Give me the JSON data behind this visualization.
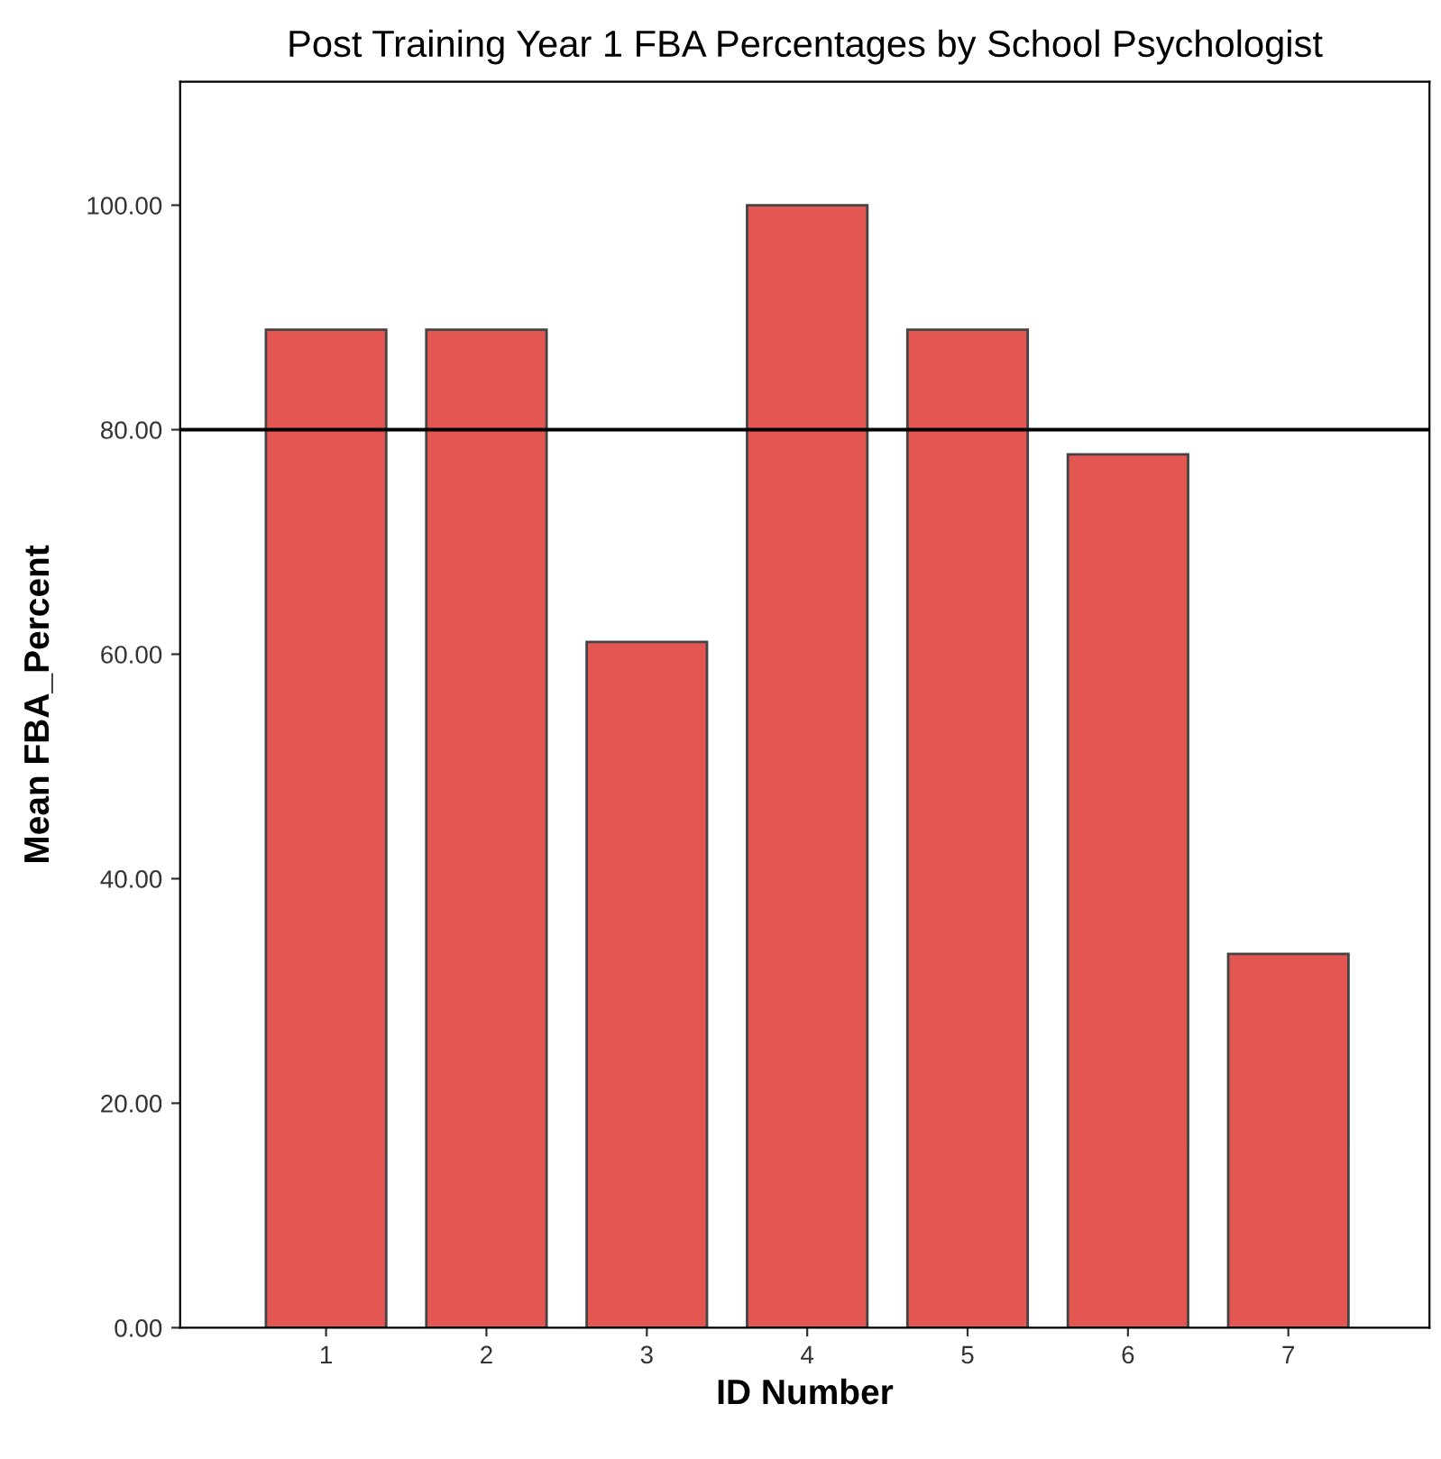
{
  "chart_data": {
    "type": "bar",
    "title": "Post Training Year 1 FBA Percentages by School Psychologist",
    "xlabel": "ID Number",
    "ylabel": "Mean FBA_Percent",
    "categories": [
      "1",
      "2",
      "3",
      "4",
      "5",
      "6",
      "7"
    ],
    "values": [
      88.9,
      88.9,
      61.1,
      100,
      88.9,
      77.8,
      33.3
    ],
    "color": "#e35651",
    "ylim": [
      0,
      111
    ],
    "yticks": [
      {
        "value": 0,
        "label": "0.00"
      },
      {
        "value": 20,
        "label": "20.00"
      },
      {
        "value": 40,
        "label": "40.00"
      },
      {
        "value": 60,
        "label": "60.00"
      },
      {
        "value": 80,
        "label": "80.00"
      },
      {
        "value": 100,
        "label": "100.00"
      }
    ],
    "ref_lines": [
      {
        "axis": "y",
        "value": 80,
        "color": "#000000"
      }
    ],
    "grid": false
  }
}
